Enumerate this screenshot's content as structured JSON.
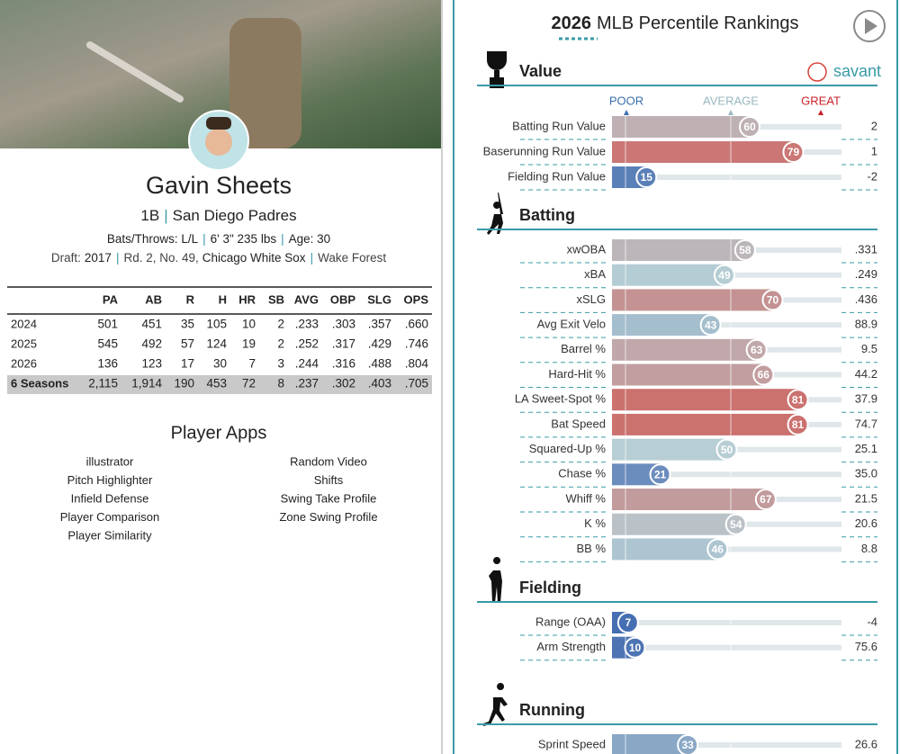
{
  "player": {
    "name": "Gavin Sheets",
    "position": "1B",
    "team": "San Diego Padres",
    "separator": "|",
    "bio": [
      "Bats/Throws: L/L",
      "6' 3\" 235 lbs",
      "Age: 30"
    ],
    "draft": {
      "label": "Draft:",
      "year": "2017",
      "pick": "Rd. 2, No. 49,",
      "team": "Chicago White Sox",
      "school": "Wake Forest"
    }
  },
  "stats": {
    "columns": [
      "PA",
      "AB",
      "R",
      "H",
      "HR",
      "SB",
      "AVG",
      "OBP",
      "SLG",
      "OPS"
    ],
    "rows": [
      {
        "season": "2024",
        "values": [
          "501",
          "451",
          "35",
          "105",
          "10",
          "2",
          ".233",
          ".303",
          ".357",
          ".660"
        ]
      },
      {
        "season": "2025",
        "values": [
          "545",
          "492",
          "57",
          "124",
          "19",
          "2",
          ".252",
          ".317",
          ".429",
          ".746"
        ]
      },
      {
        "season": "2026",
        "values": [
          "136",
          "123",
          "17",
          "30",
          "7",
          "3",
          ".244",
          ".316",
          ".488",
          ".804"
        ]
      },
      {
        "season": "6 Seasons",
        "values": [
          "2,115",
          "1,914",
          "190",
          "453",
          "72",
          "8",
          ".237",
          ".302",
          ".403",
          ".705"
        ]
      }
    ]
  },
  "apps": {
    "title": "Player Apps",
    "left": [
      "illustrator",
      "Pitch Highlighter",
      "Infield Defense",
      "Player Comparison",
      "Player Similarity"
    ],
    "right": [
      "Random Video",
      "Shifts",
      "Swing Take Profile",
      "Zone Swing Profile"
    ]
  },
  "rankings": {
    "year": "2026",
    "title": "MLB Percentile Rankings",
    "brand": "savant",
    "scale": [
      "POOR",
      "AVERAGE",
      "GREAT"
    ],
    "sections": [
      {
        "name": "Value",
        "metrics": [
          {
            "name": "Batting Run Value",
            "percentile": 60,
            "value": "2"
          },
          {
            "name": "Baserunning Run Value",
            "percentile": 79,
            "value": "1"
          },
          {
            "name": "Fielding Run Value",
            "percentile": 15,
            "value": "-2"
          }
        ]
      },
      {
        "name": "Batting",
        "metrics": [
          {
            "name": "xwOBA",
            "percentile": 58,
            "value": ".331"
          },
          {
            "name": "xBA",
            "percentile": 49,
            "value": ".249"
          },
          {
            "name": "xSLG",
            "percentile": 70,
            "value": ".436"
          },
          {
            "name": "Avg Exit Velo",
            "percentile": 43,
            "value": "88.9"
          },
          {
            "name": "Barrel %",
            "percentile": 63,
            "value": "9.5"
          },
          {
            "name": "Hard-Hit %",
            "percentile": 66,
            "value": "44.2"
          },
          {
            "name": "LA Sweet-Spot %",
            "percentile": 81,
            "value": "37.9"
          },
          {
            "name": "Bat Speed",
            "percentile": 81,
            "value": "74.7"
          },
          {
            "name": "Squared-Up %",
            "percentile": 50,
            "value": "25.1"
          },
          {
            "name": "Chase %",
            "percentile": 21,
            "value": "35.0"
          },
          {
            "name": "Whiff %",
            "percentile": 67,
            "value": "21.5"
          },
          {
            "name": "K %",
            "percentile": 54,
            "value": "20.6"
          },
          {
            "name": "BB %",
            "percentile": 46,
            "value": "8.8"
          }
        ]
      },
      {
        "name": "Fielding",
        "metrics": [
          {
            "name": "Range (OAA)",
            "percentile": 7,
            "value": "-4"
          },
          {
            "name": "Arm Strength",
            "percentile": 10,
            "value": "75.6"
          }
        ]
      },
      {
        "name": "Running",
        "metrics": [
          {
            "name": "Sprint Speed",
            "percentile": 33,
            "value": "26.6"
          }
        ]
      }
    ]
  }
}
